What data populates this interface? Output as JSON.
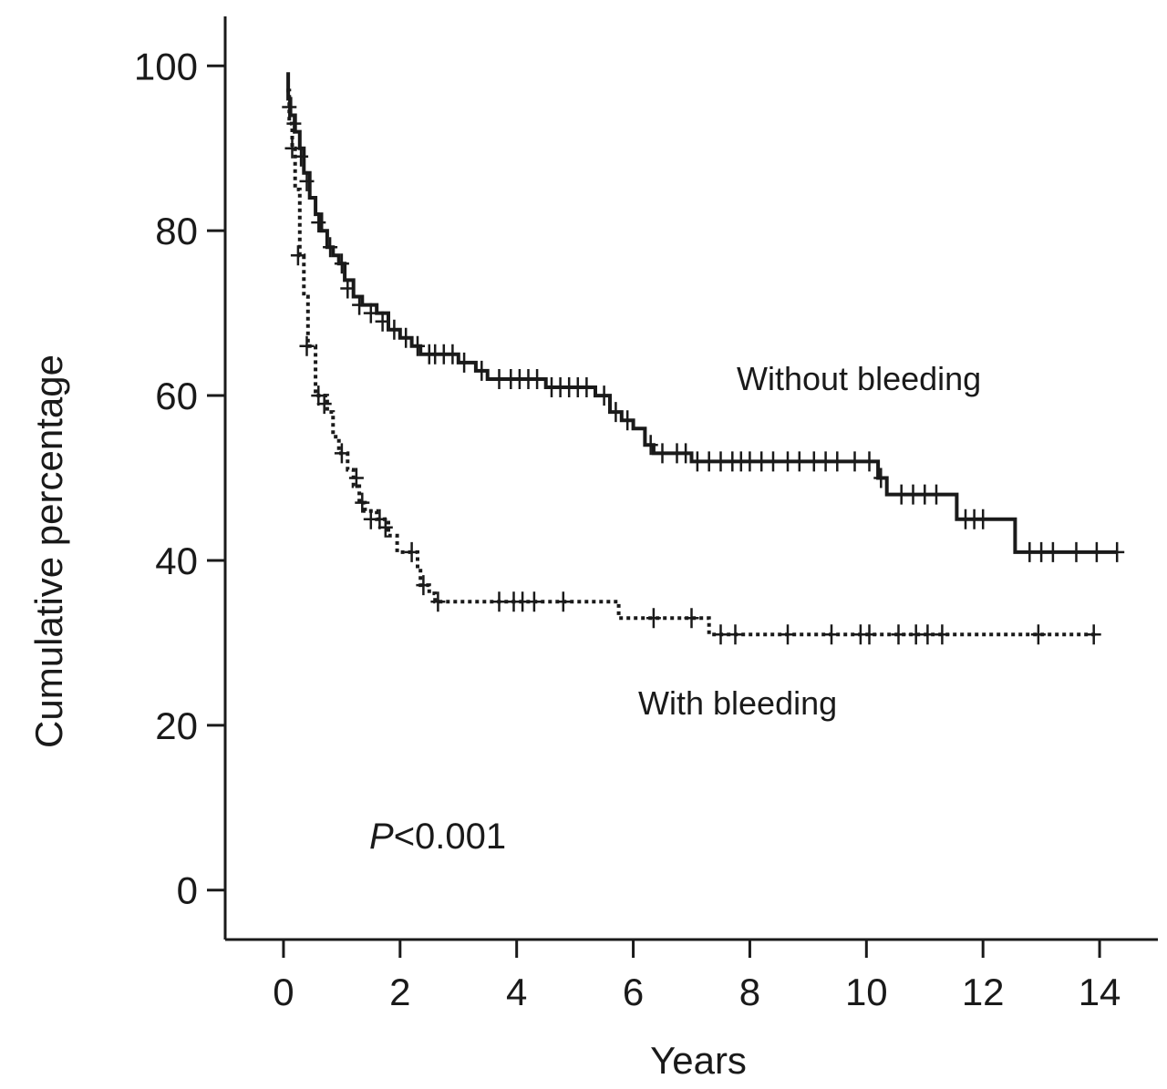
{
  "chart_data": {
    "type": "line",
    "subtype": "kaplan-meier",
    "xlabel": "Years",
    "ylabel": "Cumulative percentage",
    "xlim": [
      -1,
      15
    ],
    "ylim": [
      -6,
      106
    ],
    "xticks": [
      0,
      2,
      4,
      6,
      8,
      10,
      12,
      14
    ],
    "yticks": [
      0,
      20,
      40,
      60,
      80,
      100
    ],
    "annotation": {
      "p_italic": "P",
      "p_rest": "<0.001"
    },
    "series": [
      {
        "name": "Without bleeding",
        "style": "solid",
        "color": "#1a1a1a",
        "steps": [
          [
            0.05,
            99
          ],
          [
            0.08,
            96
          ],
          [
            0.12,
            94
          ],
          [
            0.2,
            92
          ],
          [
            0.28,
            90
          ],
          [
            0.35,
            87
          ],
          [
            0.45,
            84
          ],
          [
            0.55,
            82
          ],
          [
            0.65,
            80
          ],
          [
            0.75,
            78
          ],
          [
            0.85,
            77
          ],
          [
            0.95,
            76
          ],
          [
            1.05,
            74
          ],
          [
            1.2,
            72
          ],
          [
            1.35,
            71
          ],
          [
            1.6,
            70
          ],
          [
            1.8,
            68
          ],
          [
            2.0,
            67
          ],
          [
            2.2,
            66
          ],
          [
            2.35,
            65
          ],
          [
            2.5,
            65
          ],
          [
            3.0,
            64
          ],
          [
            3.3,
            63
          ],
          [
            3.5,
            62
          ],
          [
            3.8,
            62
          ],
          [
            4.5,
            61
          ],
          [
            5.35,
            60
          ],
          [
            5.6,
            58
          ],
          [
            5.8,
            57
          ],
          [
            6.0,
            56
          ],
          [
            6.2,
            54
          ],
          [
            6.35,
            53
          ],
          [
            7.0,
            52
          ],
          [
            10.2,
            50
          ],
          [
            10.35,
            48
          ],
          [
            11.55,
            45
          ],
          [
            12.55,
            41
          ],
          [
            14.3,
            41
          ]
        ],
        "censors": [
          [
            0.1,
            95
          ],
          [
            0.18,
            93
          ],
          [
            0.3,
            89
          ],
          [
            0.4,
            86
          ],
          [
            0.6,
            81
          ],
          [
            0.8,
            78
          ],
          [
            1.0,
            76
          ],
          [
            1.1,
            73
          ],
          [
            1.3,
            71
          ],
          [
            1.5,
            70
          ],
          [
            1.7,
            69
          ],
          [
            1.9,
            68
          ],
          [
            2.1,
            67
          ],
          [
            2.3,
            66
          ],
          [
            2.5,
            65
          ],
          [
            2.6,
            65
          ],
          [
            2.75,
            65
          ],
          [
            2.9,
            65
          ],
          [
            3.1,
            64
          ],
          [
            3.4,
            63
          ],
          [
            3.7,
            62
          ],
          [
            3.9,
            62
          ],
          [
            4.05,
            62
          ],
          [
            4.2,
            62
          ],
          [
            4.35,
            62
          ],
          [
            4.6,
            61
          ],
          [
            4.75,
            61
          ],
          [
            4.9,
            61
          ],
          [
            5.05,
            61
          ],
          [
            5.2,
            61
          ],
          [
            5.5,
            60
          ],
          [
            5.7,
            58
          ],
          [
            5.9,
            57
          ],
          [
            6.3,
            54
          ],
          [
            6.5,
            53
          ],
          [
            6.75,
            53
          ],
          [
            6.9,
            53
          ],
          [
            7.1,
            52
          ],
          [
            7.3,
            52
          ],
          [
            7.5,
            52
          ],
          [
            7.7,
            52
          ],
          [
            7.85,
            52
          ],
          [
            8.0,
            52
          ],
          [
            8.2,
            52
          ],
          [
            8.4,
            52
          ],
          [
            8.65,
            52
          ],
          [
            8.85,
            52
          ],
          [
            9.1,
            52
          ],
          [
            9.3,
            52
          ],
          [
            9.5,
            52
          ],
          [
            9.8,
            52
          ],
          [
            10.05,
            52
          ],
          [
            10.25,
            50
          ],
          [
            10.6,
            48
          ],
          [
            10.8,
            48
          ],
          [
            11.0,
            48
          ],
          [
            11.2,
            48
          ],
          [
            11.7,
            45
          ],
          [
            11.85,
            45
          ],
          [
            12.0,
            45
          ],
          [
            12.8,
            41
          ],
          [
            13.0,
            41
          ],
          [
            13.2,
            41
          ],
          [
            13.6,
            41
          ],
          [
            13.95,
            41
          ],
          [
            14.3,
            41
          ]
        ]
      },
      {
        "name": "With bleeding",
        "style": "dotted",
        "color": "#1a1a1a",
        "steps": [
          [
            0.05,
            97
          ],
          [
            0.1,
            93
          ],
          [
            0.15,
            90
          ],
          [
            0.2,
            85
          ],
          [
            0.28,
            77
          ],
          [
            0.35,
            72
          ],
          [
            0.42,
            66
          ],
          [
            0.55,
            60
          ],
          [
            0.75,
            58
          ],
          [
            0.85,
            55
          ],
          [
            0.95,
            53
          ],
          [
            1.1,
            51
          ],
          [
            1.2,
            49
          ],
          [
            1.3,
            47
          ],
          [
            1.4,
            46
          ],
          [
            1.6,
            45
          ],
          [
            1.8,
            43
          ],
          [
            1.95,
            41
          ],
          [
            2.3,
            39
          ],
          [
            2.35,
            37
          ],
          [
            2.5,
            36
          ],
          [
            2.6,
            35
          ],
          [
            5.75,
            33
          ],
          [
            7.3,
            31
          ],
          [
            13.95,
            31
          ]
        ],
        "censors": [
          [
            0.15,
            90
          ],
          [
            0.25,
            77
          ],
          [
            0.4,
            66
          ],
          [
            0.6,
            60
          ],
          [
            0.7,
            59
          ],
          [
            1.0,
            53
          ],
          [
            1.25,
            50
          ],
          [
            1.35,
            47
          ],
          [
            1.5,
            45
          ],
          [
            1.65,
            45
          ],
          [
            1.75,
            44
          ],
          [
            2.2,
            41
          ],
          [
            2.4,
            37
          ],
          [
            2.65,
            35
          ],
          [
            3.7,
            35
          ],
          [
            3.95,
            35
          ],
          [
            4.1,
            35
          ],
          [
            4.3,
            35
          ],
          [
            4.8,
            35
          ],
          [
            6.35,
            33
          ],
          [
            7.0,
            33
          ],
          [
            7.5,
            31
          ],
          [
            7.75,
            31
          ],
          [
            8.65,
            31
          ],
          [
            9.4,
            31
          ],
          [
            9.9,
            31
          ],
          [
            10.05,
            31
          ],
          [
            10.55,
            31
          ],
          [
            10.85,
            31
          ],
          [
            11.05,
            31
          ],
          [
            11.3,
            31
          ],
          [
            12.95,
            31
          ],
          [
            13.9,
            31
          ]
        ]
      }
    ]
  }
}
